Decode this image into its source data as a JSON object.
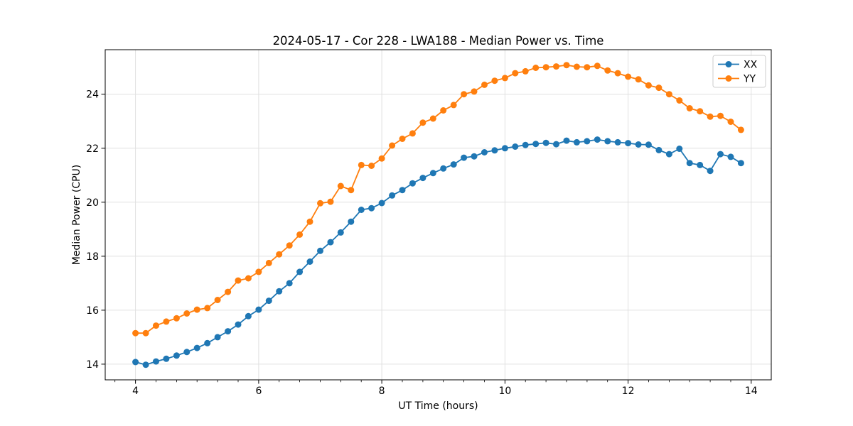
{
  "chart_data": {
    "type": "line",
    "title": "2024-05-17 - Cor 228 - LWA188 - Median Power vs. Time",
    "xlabel": "UT Time (hours)",
    "ylabel": "Median Power (CPU)",
    "xlim": [
      3.508,
      14.325
    ],
    "ylim": [
      13.42,
      25.65
    ],
    "x_major_ticks": [
      4,
      6,
      8,
      10,
      12,
      14
    ],
    "x_minor_step": 0.3333,
    "y_major_ticks": [
      14,
      16,
      18,
      20,
      22,
      24
    ],
    "grid": "major",
    "legend": {
      "position": "upper right",
      "entries": [
        "XX",
        "YY"
      ]
    },
    "x": [
      4.0,
      4.167,
      4.333,
      4.5,
      4.667,
      4.833,
      5.0,
      5.167,
      5.333,
      5.5,
      5.667,
      5.833,
      6.0,
      6.167,
      6.333,
      6.5,
      6.667,
      6.833,
      7.0,
      7.167,
      7.333,
      7.5,
      7.667,
      7.833,
      8.0,
      8.167,
      8.333,
      8.5,
      8.667,
      8.833,
      9.0,
      9.167,
      9.333,
      9.5,
      9.667,
      9.833,
      10.0,
      10.167,
      10.333,
      10.5,
      10.667,
      10.833,
      11.0,
      11.167,
      11.333,
      11.5,
      11.667,
      11.833,
      12.0,
      12.167,
      12.333,
      12.5,
      12.667,
      12.833,
      13.0,
      13.167,
      13.333,
      13.5,
      13.667,
      13.833
    ],
    "series": [
      {
        "name": "XX",
        "color": "#1f77b4",
        "marker": "o",
        "values": [
          14.08,
          13.98,
          14.1,
          14.2,
          14.32,
          14.45,
          14.6,
          14.78,
          15.0,
          15.22,
          15.47,
          15.78,
          16.02,
          16.35,
          16.7,
          17.0,
          17.42,
          17.8,
          18.2,
          18.52,
          18.88,
          19.28,
          19.72,
          19.78,
          19.97,
          20.25,
          20.45,
          20.7,
          20.9,
          21.08,
          21.25,
          21.4,
          21.65,
          21.7,
          21.85,
          21.92,
          22.0,
          22.06,
          22.12,
          22.16,
          22.2,
          22.15,
          22.28,
          22.22,
          22.26,
          22.32,
          22.26,
          22.22,
          22.19,
          22.14,
          22.13,
          21.93,
          21.78,
          21.98,
          21.45,
          21.38,
          21.16,
          21.78,
          21.68,
          21.45
        ]
      },
      {
        "name": "YY",
        "color": "#ff7f0e",
        "marker": "o",
        "values": [
          15.15,
          15.15,
          15.43,
          15.58,
          15.7,
          15.88,
          16.02,
          16.08,
          16.38,
          16.68,
          17.1,
          17.18,
          17.42,
          17.75,
          18.07,
          18.4,
          18.8,
          19.28,
          19.96,
          20.02,
          20.6,
          20.45,
          21.38,
          21.35,
          21.62,
          22.1,
          22.35,
          22.55,
          22.95,
          23.1,
          23.4,
          23.6,
          24.0,
          24.1,
          24.35,
          24.5,
          24.6,
          24.78,
          24.85,
          24.98,
          25.0,
          25.03,
          25.08,
          25.02,
          25.0,
          25.05,
          24.88,
          24.78,
          24.65,
          24.55,
          24.33,
          24.24,
          24.0,
          23.77,
          23.48,
          23.37,
          23.17,
          23.2,
          22.98,
          22.68
        ]
      }
    ]
  }
}
